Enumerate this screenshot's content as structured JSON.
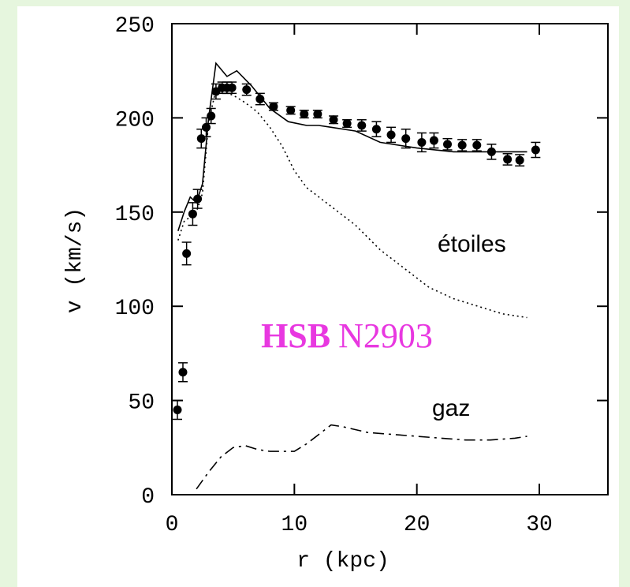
{
  "chart_data": {
    "type": "line",
    "xlabel": "r (kpc)",
    "ylabel": "v (km/s)",
    "xlim": [
      0,
      35.6
    ],
    "ylim": [
      0,
      250
    ],
    "xticks": [
      0,
      10,
      20,
      30
    ],
    "yticks": [
      0,
      50,
      100,
      150,
      200,
      250
    ],
    "annotations": [
      {
        "text": "étoiles"
      },
      {
        "text": "gaz"
      },
      {
        "text": [
          "HSB",
          "N2903"
        ],
        "color": "#e838e0"
      }
    ],
    "series": [
      {
        "style": "points",
        "color": "#000000",
        "x": [
          0.45,
          0.9,
          1.2,
          1.7,
          2.1,
          2.4,
          2.8,
          3.2,
          3.6,
          4.1,
          4.5,
          4.9,
          6.1,
          7.2,
          8.3,
          9.7,
          10.8,
          11.9,
          13.2,
          14.3,
          15.5,
          16.7,
          17.9,
          19.1,
          20.4,
          21.4,
          22.5,
          23.7,
          24.9,
          26.1,
          27.4,
          28.4,
          29.7
        ],
        "values": [
          45,
          65,
          128,
          149,
          157,
          189,
          195,
          201,
          214,
          216,
          216,
          216,
          215,
          210,
          206,
          204,
          202,
          202,
          199,
          197,
          196,
          194,
          191,
          189,
          187,
          188,
          186,
          185.5,
          185.5,
          182,
          178,
          177.5,
          183
        ],
        "errors": [
          5,
          5,
          6,
          6,
          5,
          5,
          5,
          4,
          4,
          3,
          3,
          3,
          3,
          3,
          2,
          2,
          2,
          2,
          2,
          2,
          3,
          4,
          4,
          5,
          5,
          4,
          3,
          3,
          3,
          4,
          3,
          3,
          4
        ]
      },
      {
        "style": "solid",
        "color": "#000000",
        "x": [
          0.5,
          1,
          1.5,
          2,
          2.5,
          3,
          3.6,
          4.5,
          5.3,
          6.5,
          8,
          9.5,
          11,
          12,
          13,
          15,
          17,
          20,
          23,
          26,
          29
        ],
        "values": [
          140,
          150,
          158,
          155,
          165,
          200,
          229,
          222,
          225,
          217,
          205,
          198,
          196,
          196,
          195,
          193,
          187,
          184,
          182,
          182,
          182
        ]
      },
      {
        "style": "dotted",
        "color": "#000000",
        "x": [
          0.5,
          1,
          2,
          2.5,
          3,
          3.6,
          5,
          6,
          7,
          8,
          9,
          10,
          11,
          12,
          13,
          14,
          15,
          17,
          19,
          21,
          23,
          25,
          27,
          29
        ],
        "values": [
          135,
          145,
          150,
          160,
          198,
          215,
          212,
          208,
          203,
          195,
          185,
          172,
          163,
          158,
          153,
          148,
          143,
          130,
          120,
          110,
          104,
          100,
          96,
          94
        ]
      },
      {
        "style": "dashdot",
        "color": "#000000",
        "x": [
          2,
          3,
          4,
          5,
          6,
          7,
          8,
          9,
          10,
          11,
          12,
          13,
          14,
          16,
          18,
          20,
          22,
          24,
          26,
          28,
          29
        ],
        "values": [
          3,
          12,
          20,
          25,
          26,
          24,
          23,
          23,
          23,
          27,
          32,
          37,
          36,
          33,
          32,
          31,
          30,
          29,
          29,
          30,
          31
        ]
      }
    ]
  }
}
